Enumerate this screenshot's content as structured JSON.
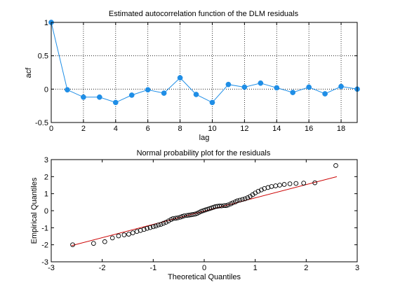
{
  "chart_data": [
    {
      "type": "line",
      "title": "Estimated autocorrelation function of the DLM residuals",
      "xlabel": "lag",
      "ylabel": "acf",
      "xlim": [
        0,
        19
      ],
      "ylim": [
        -0.5,
        1
      ],
      "xticks": [
        "0",
        "2",
        "4",
        "6",
        "8",
        "10",
        "12",
        "14",
        "16",
        "18"
      ],
      "yticks": [
        "-0.5",
        "0",
        "0.5",
        "1"
      ],
      "grid": true,
      "grid_style": "dotted",
      "colors": {
        "series": "#1f8ee6"
      },
      "series": [
        {
          "x": [
            0,
            1,
            2,
            3,
            4,
            5,
            6,
            7,
            8,
            9,
            10,
            11,
            12,
            13,
            14,
            15,
            16,
            17,
            18,
            19
          ],
          "values": [
            1.0,
            -0.01,
            -0.12,
            -0.12,
            -0.2,
            -0.09,
            -0.01,
            -0.06,
            0.17,
            -0.08,
            -0.2,
            0.07,
            0.03,
            0.09,
            0.02,
            -0.05,
            0.03,
            -0.07,
            0.04,
            0.0
          ]
        }
      ]
    },
    {
      "type": "scatter",
      "title": "Normal probability plot for the residuals",
      "xlabel": "Theoretical Quantiles",
      "ylabel": "Empirical Quantiles",
      "xlim": [
        -3,
        3
      ],
      "ylim": [
        -3,
        3
      ],
      "xticks": [
        "-3",
        "-2",
        "-1",
        "0",
        "1",
        "2",
        "3"
      ],
      "yticks": [
        "-3",
        "-2",
        "-1",
        "0",
        "1",
        "2",
        "3"
      ],
      "grid": false,
      "colors": {
        "points": "#000000",
        "reference_line": "#cc0000"
      },
      "reference_line": {
        "x": [
          -2.6,
          2.6
        ],
        "y": [
          -2.05,
          2.0
        ]
      },
      "series": [
        {
          "x": [
            -2.58,
            -2.17,
            -1.95,
            -1.8,
            -1.68,
            -1.57,
            -1.48,
            -1.4,
            -1.32,
            -1.25,
            -1.18,
            -1.12,
            -1.06,
            -1.0,
            -0.95,
            -0.9,
            -0.85,
            -0.8,
            -0.75,
            -0.7,
            -0.65,
            -0.61,
            -0.56,
            -0.52,
            -0.47,
            -0.43,
            -0.39,
            -0.34,
            -0.3,
            -0.26,
            -0.22,
            -0.18,
            -0.14,
            -0.1,
            -0.06,
            -0.02,
            0.02,
            0.06,
            0.1,
            0.14,
            0.18,
            0.22,
            0.26,
            0.3,
            0.34,
            0.39,
            0.43,
            0.47,
            0.52,
            0.56,
            0.61,
            0.65,
            0.7,
            0.75,
            0.8,
            0.85,
            0.9,
            0.95,
            1.0,
            1.06,
            1.12,
            1.18,
            1.25,
            1.32,
            1.4,
            1.48,
            1.57,
            1.68,
            1.8,
            1.95,
            2.17,
            2.58
          ],
          "values": [
            -2.0,
            -1.92,
            -1.82,
            -1.6,
            -1.48,
            -1.42,
            -1.38,
            -1.3,
            -1.22,
            -1.16,
            -1.1,
            -1.04,
            -0.99,
            -0.94,
            -0.9,
            -0.84,
            -0.8,
            -0.74,
            -0.68,
            -0.6,
            -0.52,
            -0.46,
            -0.44,
            -0.42,
            -0.38,
            -0.34,
            -0.3,
            -0.28,
            -0.26,
            -0.24,
            -0.22,
            -0.2,
            -0.16,
            -0.1,
            -0.04,
            0.0,
            0.04,
            0.08,
            0.12,
            0.16,
            0.2,
            0.24,
            0.26,
            0.28,
            0.28,
            0.3,
            0.3,
            0.34,
            0.4,
            0.46,
            0.52,
            0.58,
            0.62,
            0.66,
            0.7,
            0.76,
            0.84,
            0.94,
            1.04,
            1.14,
            1.22,
            1.3,
            1.36,
            1.42,
            1.46,
            1.5,
            1.54,
            1.58,
            1.6,
            1.62,
            1.64,
            2.65
          ]
        }
      ]
    }
  ]
}
